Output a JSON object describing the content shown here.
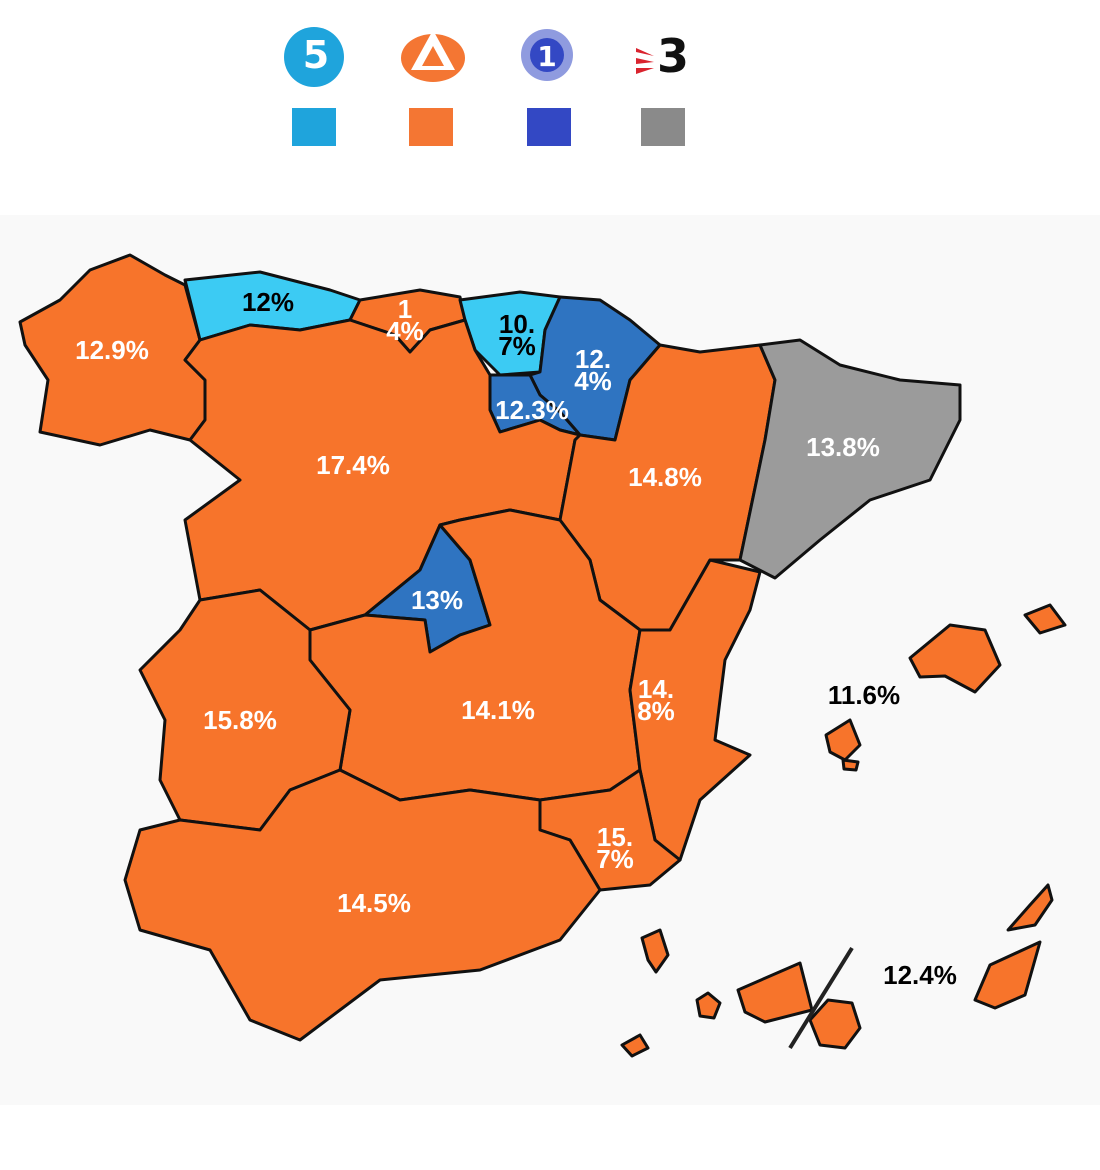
{
  "legend": [
    {
      "logo": "5",
      "color": "#1fa4dc"
    },
    {
      "color": "#f47633"
    },
    {
      "logo": "1",
      "color": "#3348c4"
    },
    {
      "logo": "3",
      "color": "#8a8a8a"
    }
  ],
  "regions": [
    {
      "value": 12.9,
      "label": "12.9%",
      "color": "#f7742b",
      "text_color": "#ffffff"
    },
    {
      "value": 12,
      "label": "12%",
      "color": "#3ccbf3",
      "text_color": "#000000"
    },
    {
      "value": 14,
      "label": "14%",
      "color": "#f7742b",
      "text_color": "#ffffff"
    },
    {
      "value": 10.7,
      "label": "10.7%",
      "color": "#3ccbf3",
      "text_color": "#000000"
    },
    {
      "value": 12.4,
      "label": "12.4%",
      "color": "#2f74c1",
      "text_color": "#ffffff"
    },
    {
      "value": 12.3,
      "label": "12.3%",
      "color": "#2f74c1",
      "text_color": "#ffffff"
    },
    {
      "value": 17.4,
      "label": "17.4%",
      "color": "#f7742b",
      "text_color": "#ffffff"
    },
    {
      "value": 14.8,
      "label": "14.8%",
      "color": "#f7742b",
      "text_color": "#ffffff"
    },
    {
      "value": 13.8,
      "label": "13.8%",
      "color": "#9b9b9b",
      "text_color": "#ffffff"
    },
    {
      "value": 13,
      "label": "13%",
      "color": "#2f74c1",
      "text_color": "#ffffff"
    },
    {
      "value": 14.1,
      "label": "14.1%",
      "color": "#f7742b",
      "text_color": "#ffffff"
    },
    {
      "value": 15.8,
      "label": "15.8%",
      "color": "#f7742b",
      "text_color": "#ffffff"
    },
    {
      "value": 14.8,
      "label": "14.8%",
      "color": "#f7742b",
      "text_color": "#ffffff"
    },
    {
      "value": 15.7,
      "label": "15.7%",
      "color": "#f7742b",
      "text_color": "#ffffff"
    },
    {
      "value": 14.5,
      "label": "14.5%",
      "color": "#f7742b",
      "text_color": "#ffffff"
    },
    {
      "value": 11.6,
      "label": "11.6%",
      "color": "#f7742b",
      "text_color": "#000000"
    },
    {
      "value": 12.4,
      "label": "12.4%",
      "color": "#f7742b",
      "text_color": "#000000"
    }
  ]
}
